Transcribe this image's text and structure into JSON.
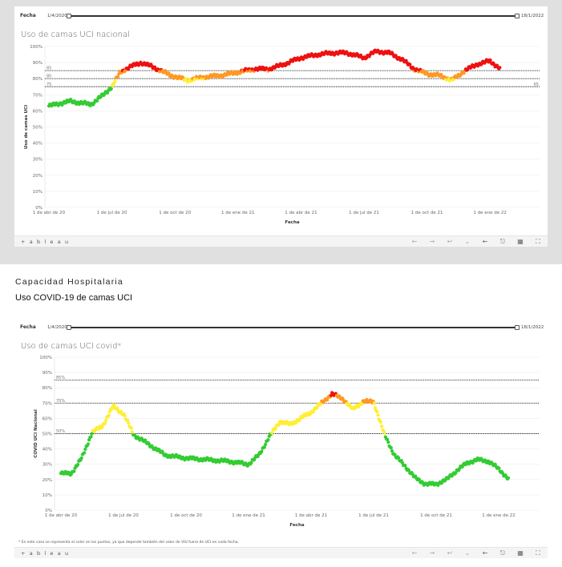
{
  "viz1": {
    "filter_label": "Fecha",
    "range_start": "1/4/2020",
    "range_end": "18/1/2022",
    "title": "Uso de camas UCI nacional",
    "footnote": ""
  },
  "viz2": {
    "filter_label": "Fecha",
    "range_start": "1/4/2020",
    "range_end": "18/1/2022",
    "title": "Uso de camas UCI covid*",
    "footnote": "* En este caso se representa el color en los puntos, ya que depende también del valor de VIU fuera de UCI en cada fecha."
  },
  "section": {
    "heading": "Capacidad Hospitalaria",
    "subheading": "Uso COVID-19 de camas UCI"
  },
  "toolbar": {
    "logo": "+ a b l e a u",
    "icons": [
      "undo-icon",
      "redo-icon",
      "revert-icon",
      "pause-icon",
      "share-icon",
      "download-icon",
      "fullscreen-icon"
    ]
  },
  "colors": {
    "green": "#33cc33",
    "yellow": "#ffee33",
    "orange": "#ff9922",
    "red": "#ee1111"
  },
  "chart_data": [
    {
      "type": "scatter",
      "title": "Uso de camas UCI nacional",
      "xlabel": "Fecha",
      "ylabel": "Uso de camas UCI",
      "x_ticks": [
        "1 de abr de 20",
        "1 de jul de 20",
        "1 de oct de 20",
        "1 de ene de 21",
        "1 de abr de 21",
        "1 de jul de 21",
        "1 de oct de 21",
        "1 de ene de 22"
      ],
      "y_ticks": [
        "0%",
        "10%",
        "20%",
        "30%",
        "40%",
        "50%",
        "60%",
        "70%",
        "80%",
        "90%",
        "100%"
      ],
      "ylim": [
        0,
        100
      ],
      "reference_lines": [
        {
          "value": 85,
          "left_label": "85",
          "right_label": ""
        },
        {
          "value": 80,
          "left_label": "80",
          "right_label": ""
        },
        {
          "value": 75,
          "left_label": "75",
          "right_label": "65"
        }
      ],
      "x_months": [
        0,
        1,
        2,
        2.6,
        3,
        3.4,
        3.8,
        4.4,
        5,
        5.8,
        6.6,
        7.4,
        8.2,
        9,
        9.8,
        10.5,
        11.2,
        12,
        12.8,
        13.5,
        14.2,
        15,
        15.6,
        16.2,
        16.8,
        17.4,
        18,
        18.6,
        19.2,
        19.8,
        20.4,
        21,
        21.5
      ],
      "values": [
        63,
        66,
        64,
        70,
        75,
        84,
        87,
        90,
        87,
        82,
        79,
        81,
        82,
        84,
        86,
        86,
        89,
        93,
        95,
        96,
        96,
        93,
        97,
        96,
        92,
        86,
        83,
        82,
        79,
        85,
        89,
        91,
        86
      ]
    },
    {
      "type": "scatter",
      "title": "Uso de camas UCI covid*",
      "xlabel": "Fecha",
      "ylabel": "COVID UCI Nacional",
      "x_ticks": [
        "1 de abr de 20",
        "1 de jul de 20",
        "1 de oct de 20",
        "1 de ene de 21",
        "1 de abr de 21",
        "1 de jul de 21",
        "1 de oct de 21",
        "1 de ene de 22"
      ],
      "y_ticks": [
        "0%",
        "10%",
        "20%",
        "30%",
        "40%",
        "50%",
        "60%",
        "70%",
        "80%",
        "90%",
        "100%"
      ],
      "ylim": [
        0,
        100
      ],
      "reference_lines": [
        {
          "value": 85,
          "left_label": "85%",
          "right_label": ""
        },
        {
          "value": 70,
          "left_label": "70%",
          "right_label": ""
        },
        {
          "value": 50,
          "left_label": "50%",
          "right_label": ""
        }
      ],
      "x_months": [
        0,
        0.5,
        1,
        1.5,
        2,
        2.5,
        3,
        3.5,
        4,
        5,
        6,
        7,
        8,
        9,
        9.5,
        10,
        10.5,
        11,
        12,
        13,
        13.5,
        14,
        14.5,
        15,
        15.5,
        16,
        16.5,
        17,
        17.5,
        18,
        18.5,
        19,
        19.5,
        20,
        20.5,
        21,
        21.5
      ],
      "values": [
        24,
        24,
        34,
        51,
        55,
        68,
        63,
        49,
        45,
        36,
        34,
        33,
        32,
        30,
        36,
        48,
        58,
        56,
        64,
        76,
        73,
        66,
        71,
        71,
        50,
        36,
        29,
        21,
        17,
        17,
        20,
        26,
        31,
        33,
        32,
        27,
        20
      ]
    }
  ]
}
